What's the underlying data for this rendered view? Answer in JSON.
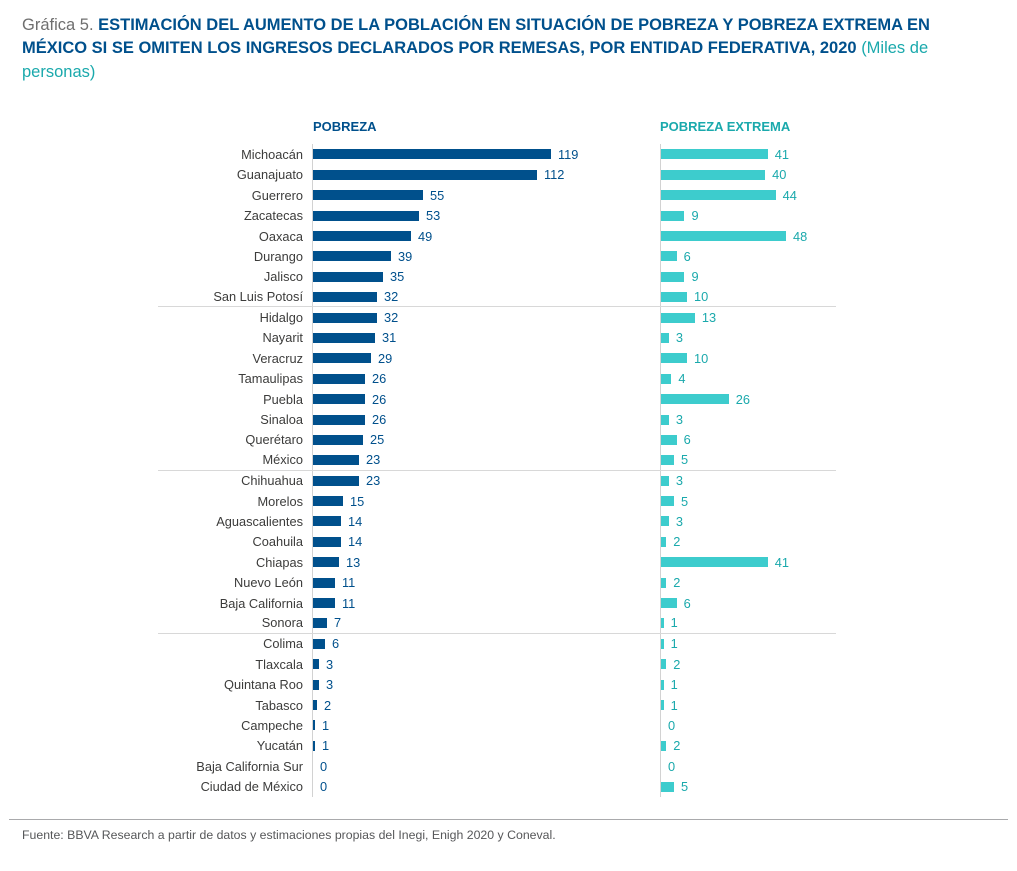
{
  "title": {
    "prefix": "Gráfica 5.",
    "main": "ESTIMACIÓN DEL AUMENTO DE LA POBLACIÓN EN SITUACIÓN DE POBREZA Y POBREZA EXTREMA EN MÉXICO SI SE OMITEN LOS INGRESOS DECLARADOS POR REMESAS, POR ENTIDAD FEDERATIVA, 2020",
    "unit": "(Miles de personas)"
  },
  "chart_data": {
    "type": "bar",
    "orientation": "horizontal",
    "units": "Miles de personas",
    "grid": "group separators after San Luis Potosí, México and Sonora",
    "legend_position": "column headers above each bar panel",
    "categories": [
      "Michoacán",
      "Guanajuato",
      "Guerrero",
      "Zacatecas",
      "Oaxaca",
      "Durango",
      "Jalisco",
      "San Luis Potosí",
      "Hidalgo",
      "Nayarit",
      "Veracruz",
      "Tamaulipas",
      "Puebla",
      "Sinaloa",
      "Querétaro",
      "México",
      "Chihuahua",
      "Morelos",
      "Aguascalientes",
      "Coahuila",
      "Chiapas",
      "Nuevo León",
      "Baja California",
      "Sonora",
      "Colima",
      "Tlaxcala",
      "Quintana Roo",
      "Tabasco",
      "Campeche",
      "Yucatán",
      "Baja California Sur",
      "Ciudad de México"
    ],
    "series": [
      {
        "name": "POBREZA",
        "bar_color": "#00508c",
        "text_color": "#00508c",
        "xlim": [
          0,
          119
        ],
        "values": [
          119,
          112,
          55,
          53,
          49,
          39,
          35,
          32,
          32,
          31,
          29,
          26,
          26,
          26,
          25,
          23,
          23,
          15,
          14,
          14,
          13,
          11,
          11,
          7,
          6,
          3,
          3,
          2,
          1,
          1,
          0,
          0
        ]
      },
      {
        "name": "POBREZA EXTREMA",
        "bar_color": "#3dcccd",
        "text_color": "#1aa9ac",
        "xlim": [
          0,
          48
        ],
        "values": [
          41,
          40,
          44,
          9,
          48,
          6,
          9,
          10,
          13,
          3,
          10,
          4,
          26,
          3,
          6,
          5,
          3,
          5,
          3,
          2,
          41,
          2,
          6,
          1,
          1,
          2,
          1,
          1,
          0,
          2,
          0,
          5
        ]
      }
    ],
    "separator_after": [
      "San Luis Potosí",
      "México",
      "Sonora"
    ]
  },
  "footer": {
    "text": "Fuente: BBVA Research a partir de datos y estimaciones propias del Inegi, Enigh 2020 y Coneval."
  }
}
